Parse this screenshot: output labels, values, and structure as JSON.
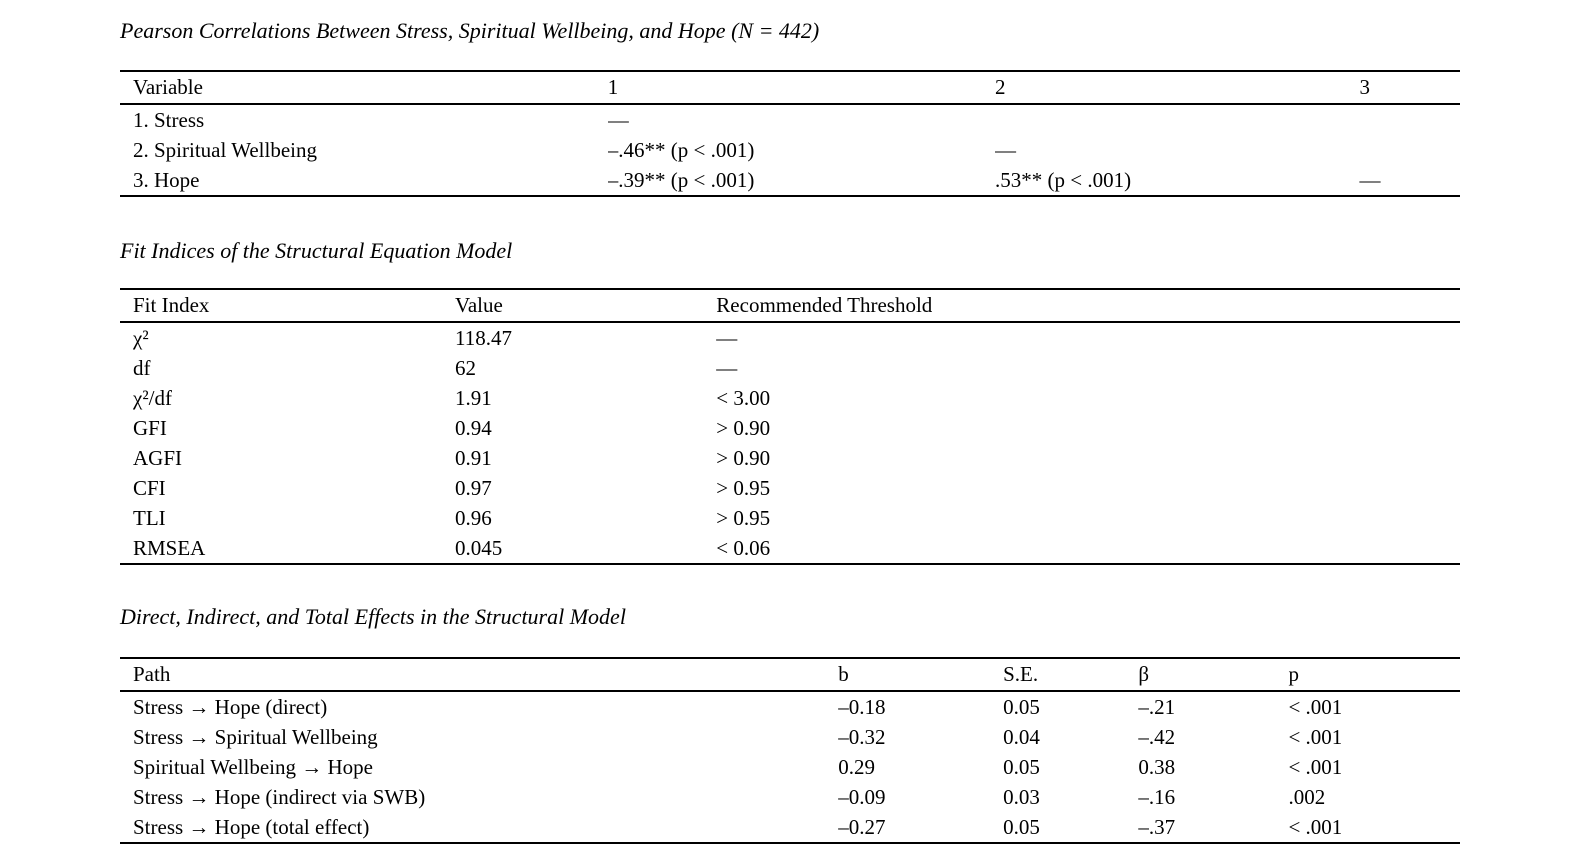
{
  "document": {
    "background": "#ffffff",
    "text_color": "#000000",
    "rule_color": "#000000",
    "sections": [
      {
        "title": "Pearson Correlations Between Stress, Spiritual Wellbeing, and Hope (N = 442)",
        "table": {
          "columns": [
            "Variable",
            "1",
            "2",
            "3"
          ],
          "col_widths": [
            "36.4%",
            "28.9%",
            "27.2%",
            "7.5%"
          ],
          "rows": [
            [
              "1. Stress",
              "—",
              "",
              ""
            ],
            [
              "2. Spiritual Wellbeing",
              "–.46** (p < .001)",
              "—",
              ""
            ],
            [
              "3. Hope",
              "–.39** (p < .001)",
              ".53** (p < .001)",
              "—"
            ]
          ]
        }
      },
      {
        "title": "Fit Indices of the Structural Equation Model",
        "table": {
          "columns": [
            "Fit Index",
            "Value",
            "Recommended Threshold"
          ],
          "col_widths": [
            "25%",
            "19.5%",
            "55.5%"
          ],
          "rows": [
            [
              "χ²",
              "118.47",
              "—"
            ],
            [
              "df",
              "62",
              "—"
            ],
            [
              "χ²/df",
              "1.91",
              "< 3.00"
            ],
            [
              "GFI",
              "0.94",
              "> 0.90"
            ],
            [
              "AGFI",
              "0.91",
              "> 0.90"
            ],
            [
              "CFI",
              "0.97",
              "> 0.95"
            ],
            [
              "TLI",
              "0.96",
              "> 0.95"
            ],
            [
              "RMSEA",
              "0.045",
              "< 0.06"
            ]
          ]
        }
      },
      {
        "title": "Direct, Indirect, and Total Effects in the Structural Model",
        "table": {
          "columns": [
            "Path",
            "b",
            "S.E.",
            "β",
            "p"
          ],
          "col_widths": [
            "53.6%",
            "12.3%",
            "10.1%",
            "11.2%",
            "12.8%"
          ],
          "rows": [
            [
              "Stress → Hope (direct)",
              "–0.18",
              "0.05",
              "–.21",
              "< .001"
            ],
            [
              "Stress → Spiritual Wellbeing",
              "–0.32",
              "0.04",
              "–.42",
              "< .001"
            ],
            [
              "Spiritual Wellbeing → Hope",
              "0.29",
              "0.05",
              "0.38",
              "< .001"
            ],
            [
              "Stress → Hope (indirect via SWB)",
              "–0.09",
              "0.03",
              "–.16",
              ".002"
            ],
            [
              "Stress → Hope (total effect)",
              "–0.27",
              "0.05",
              "–.37",
              "< .001"
            ]
          ]
        }
      }
    ]
  }
}
